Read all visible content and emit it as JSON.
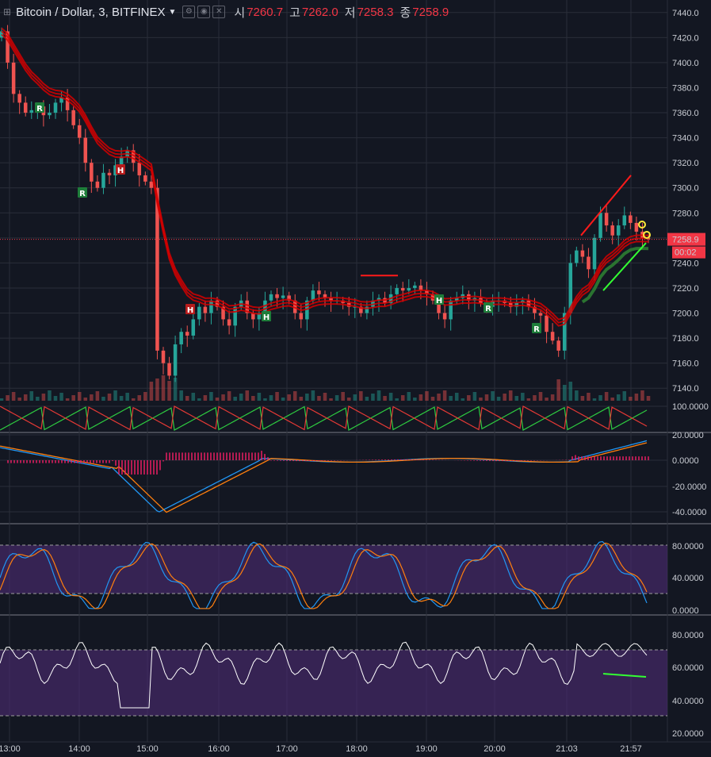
{
  "header": {
    "symbol": "Bitcoin / Dollar, 3, BITFINEX",
    "open_label": "시",
    "open": "7260.7",
    "high_label": "고",
    "high": "7262.0",
    "low_label": "저",
    "low": "7258.3",
    "close_label": "종",
    "close": "7258.9"
  },
  "price_axis": {
    "ticks": [
      "7440.0",
      "7420.0",
      "7400.0",
      "7380.0",
      "7360.0",
      "7340.0",
      "7320.0",
      "7300.0",
      "7280.0",
      "7260.0",
      "7240.0",
      "7220.0",
      "7200.0",
      "7180.0",
      "7160.0",
      "7140.0"
    ],
    "last_price": "7258.9",
    "countdown": "00:02"
  },
  "stoch_rsi_axis": {
    "ticks": [
      "100.0000"
    ]
  },
  "macd_axis": {
    "ticks": [
      "20.0000",
      "0.0000",
      "-20.0000",
      "-40.0000"
    ]
  },
  "stoch_axis": {
    "ticks": [
      "80.0000",
      "40.0000",
      "0.0000"
    ]
  },
  "rsi_axis": {
    "ticks": [
      "80.0000",
      "60.0000",
      "40.0000",
      "20.0000"
    ]
  },
  "time_axis": {
    "ticks": [
      "13:00",
      "14:00",
      "15:00",
      "16:00",
      "17:00",
      "18:00",
      "19:00",
      "20:00",
      "21:03",
      "21:57"
    ]
  },
  "markers": [
    {
      "t": "R",
      "c": "#1e7d3a"
    },
    {
      "t": "R",
      "c": "#1e7d3a"
    },
    {
      "t": "H",
      "c": "#b71c1c"
    },
    {
      "t": "H",
      "c": "#b71c1c"
    },
    {
      "t": "H",
      "c": "#1e7d3a"
    },
    {
      "t": "H",
      "c": "#1e7d3a"
    },
    {
      "t": "R",
      "c": "#1e7d3a"
    },
    {
      "t": "R",
      "c": "#1e7d3a"
    }
  ],
  "colors": {
    "background": "#131722",
    "up": "#26a69a",
    "down": "#ef5350",
    "ribbon_red": "#d50000",
    "ribbon_green": "#1b5e20",
    "last_price": "#f23645",
    "macd_line": "#2196f3",
    "signal_line": "#ff7f0e",
    "stoch_band": "#4a2a6e"
  },
  "chart_data": {
    "type": "candlestick",
    "y_range": [
      7130,
      7450
    ],
    "close_series": [
      7425,
      7400,
      7375,
      7368,
      7360,
      7362,
      7365,
      7358,
      7360,
      7368,
      7372,
      7362,
      7350,
      7340,
      7320,
      7305,
      7300,
      7312,
      7310,
      7318,
      7325,
      7330,
      7320,
      7310,
      7305,
      7300,
      7170,
      7160,
      7150,
      7175,
      7185,
      7182,
      7195,
      7205,
      7200,
      7210,
      7205,
      7195,
      7190,
      7205,
      7210,
      7200,
      7195,
      7200,
      7210,
      7215,
      7212,
      7214,
      7210,
      7200,
      7195,
      7210,
      7218,
      7215,
      7212,
      7210,
      7210,
      7208,
      7205,
      7205,
      7200,
      7205,
      7210,
      7212,
      7208,
      7215,
      7220,
      7218,
      7220,
      7222,
      7218,
      7215,
      7210,
      7200,
      7195,
      7210,
      7212,
      7215,
      7210,
      7212,
      7208,
      7205,
      7210,
      7210,
      7208,
      7205,
      7208,
      7210,
      7205,
      7200,
      7198,
      7185,
      7178,
      7170,
      7200,
      7240,
      7250,
      7245,
      7235,
      7260,
      7280,
      7270,
      7262,
      7270,
      7278,
      7272,
      7265,
      7260,
      7258.9
    ]
  }
}
